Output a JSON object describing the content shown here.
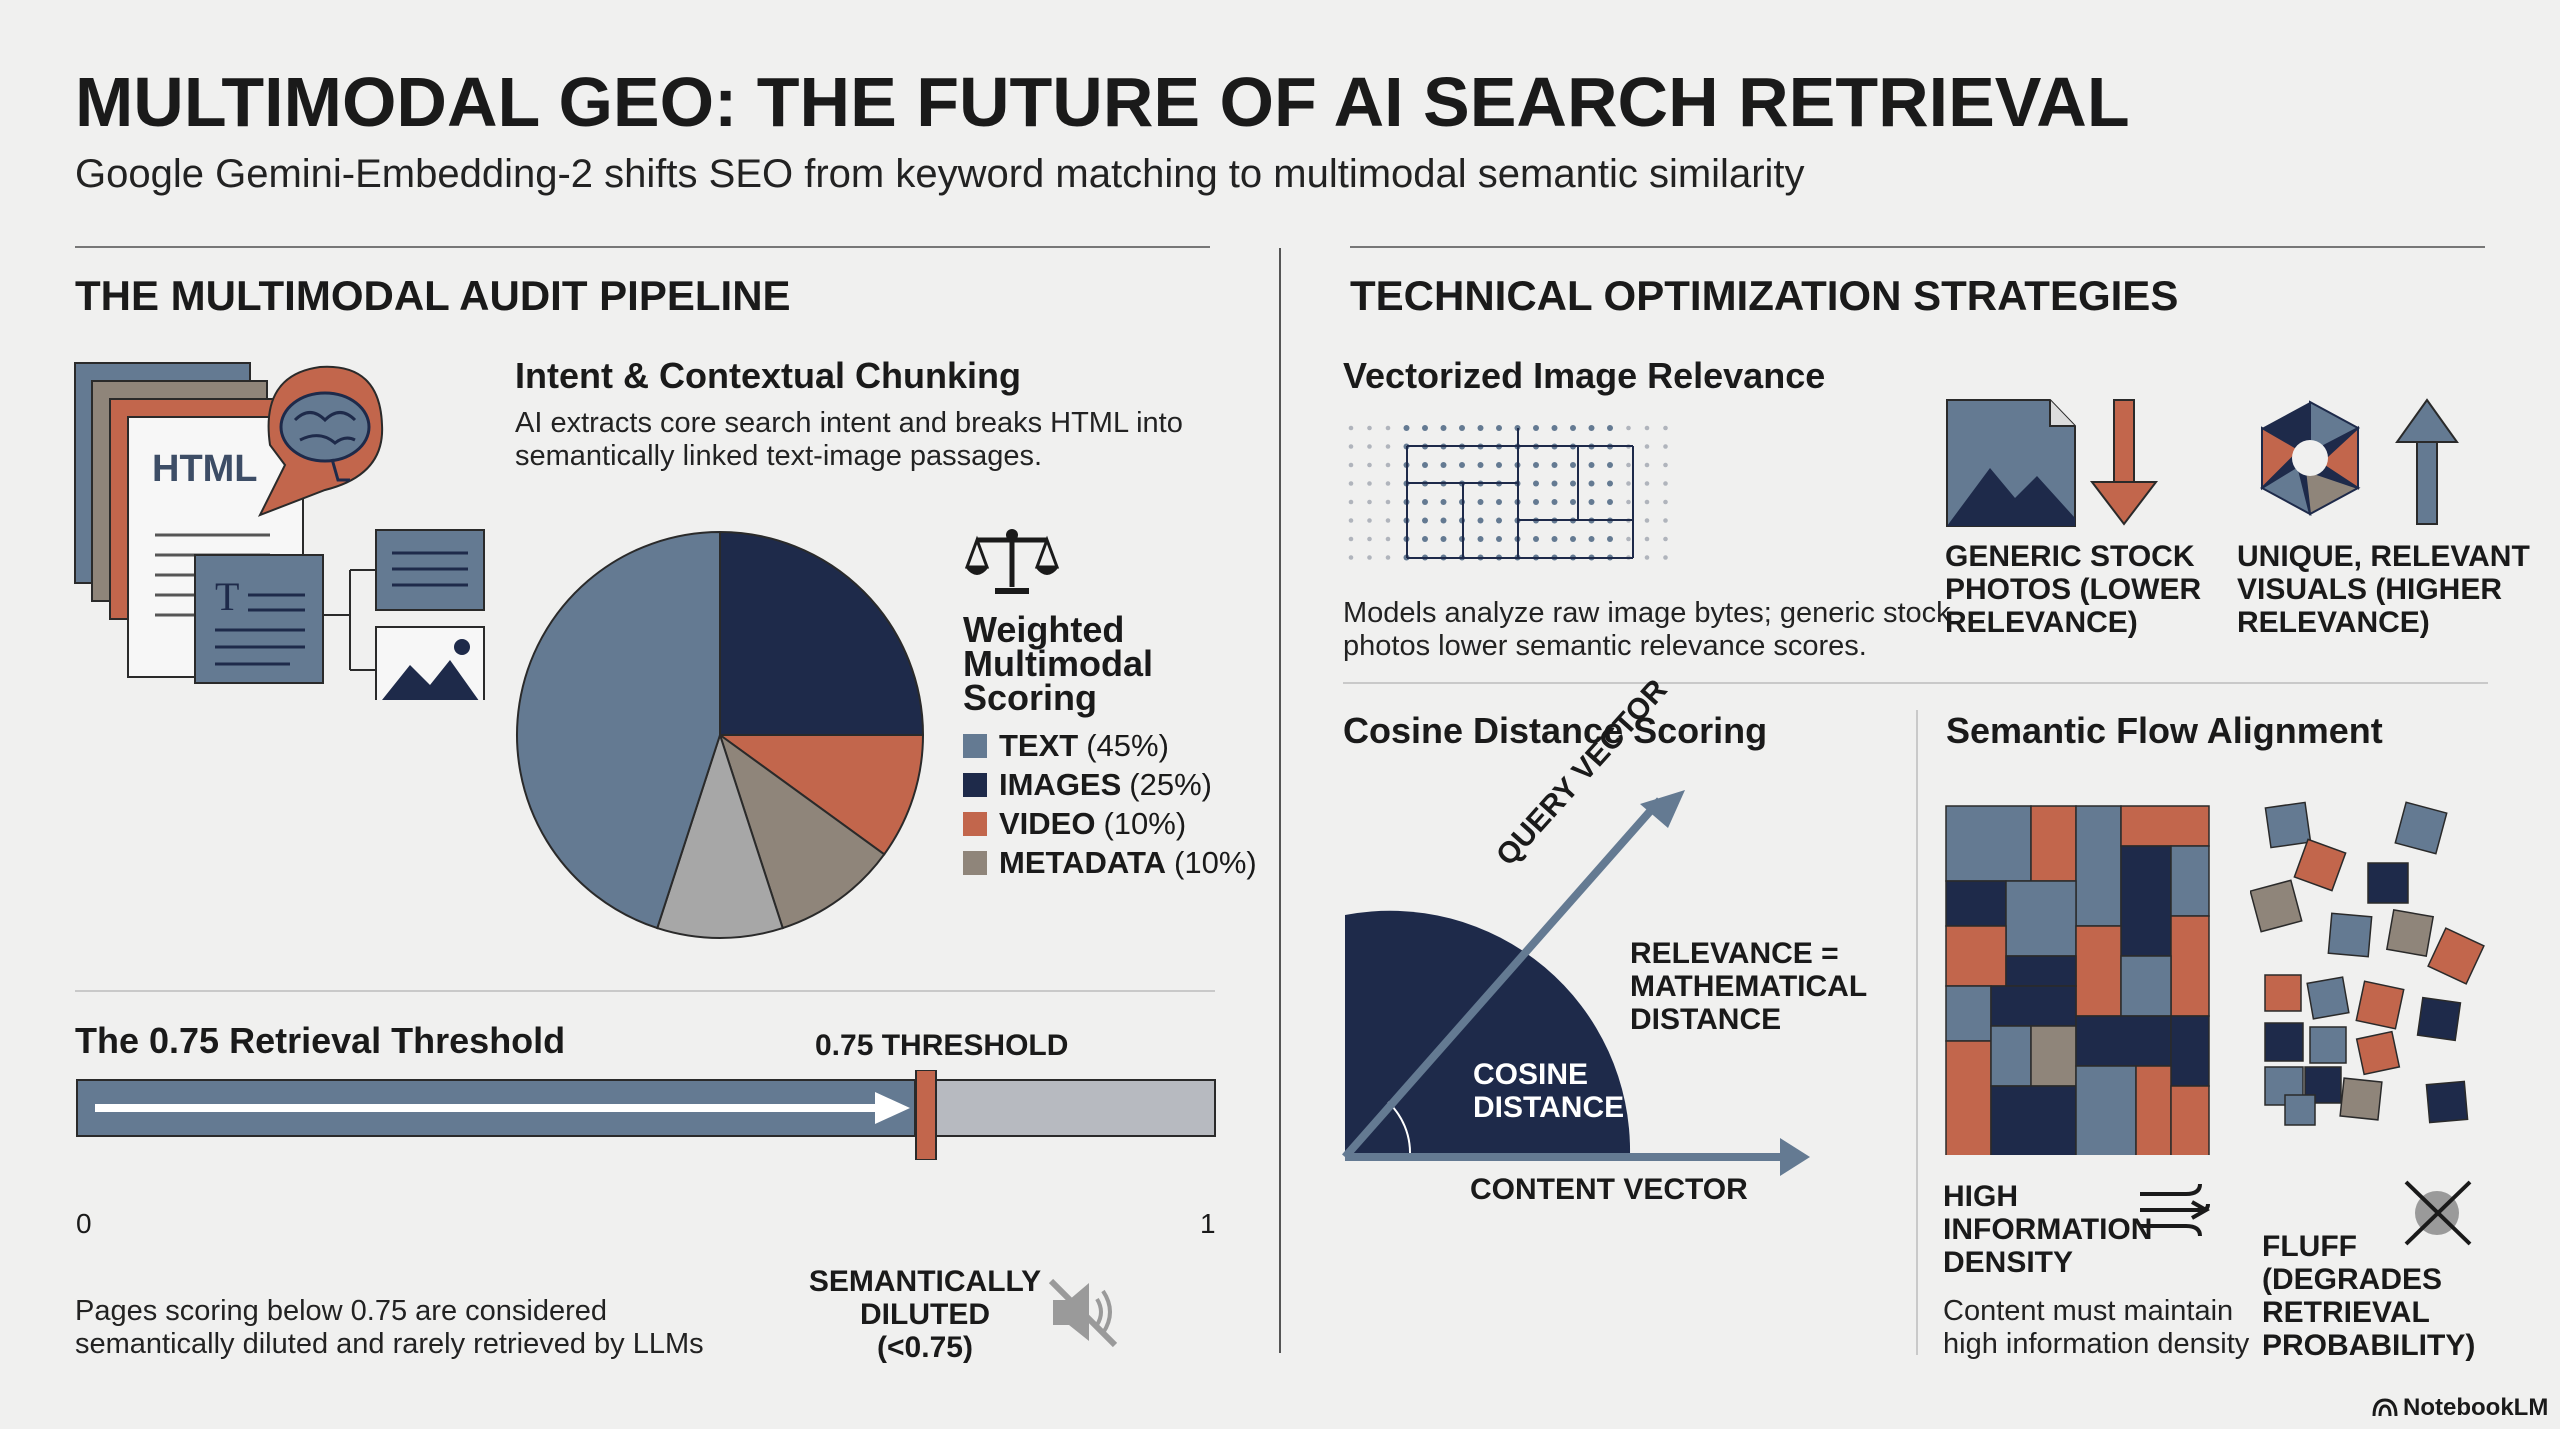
{
  "header": {
    "title": "MULTIMODAL GEO: THE FUTURE OF AI SEARCH RETRIEVAL",
    "subtitle": "Google Gemini-Embedding-2 shifts SEO from keyword matching to multimodal semantic similarity"
  },
  "colors": {
    "slate": "#647a92",
    "navy": "#1e2a4a",
    "rust": "#c2664c",
    "taupe": "#8f857a",
    "gray_bar": "#b7bac0",
    "background": "#f0f0ef"
  },
  "left": {
    "heading": "THE MULTIMODAL AUDIT PIPELINE",
    "chunking": {
      "title": "Intent & Contextual Chunking",
      "body_line1": "AI extracts core search intent and breaks HTML into",
      "body_line2": "semantically linked text-image passages.",
      "doc_label": "HTML",
      "text_glyph": "T",
      "icons": [
        "document-stack-icon",
        "brain-icon",
        "text-block-icon",
        "image-icon"
      ]
    },
    "scoring": {
      "title_line1": "Weighted",
      "title_line2": "Multimodal",
      "title_line3": "Scoring",
      "icon": "balance-scale-icon"
    },
    "threshold": {
      "title": "The 0.75 Retrieval Threshold",
      "marker_label": "0.75 THRESHOLD",
      "min_label": "0",
      "max_label": "1",
      "threshold_value": 0.75,
      "diluted_line1": "SEMANTICALLY",
      "diluted_line2": "DILUTED",
      "diluted_line3": "(<0.75)",
      "note_line1": "Pages scoring below 0.75 are considered",
      "note_line2": "semantically diluted and rarely retrieved by LLMs",
      "icon": "muted-speaker-icon"
    }
  },
  "chart_data": {
    "type": "pie",
    "title": "Weighted Multimodal Scoring",
    "slices": [
      {
        "name": "TEXT",
        "label": "(45%)",
        "value": 45,
        "color": "#647a92"
      },
      {
        "name": "IMAGES",
        "label": "(25%)",
        "value": 25,
        "color": "#1e2a4a"
      },
      {
        "name": "VIDEO",
        "label": "(10%)",
        "value": 10,
        "color": "#c2664c"
      },
      {
        "name": "METADATA",
        "label": "(10%)",
        "value": 10,
        "color": "#8f857a"
      }
    ],
    "drawn_slices": [
      {
        "name": "IMAGES",
        "value": 25,
        "color": "#1e2a4a"
      },
      {
        "name": "VIDEO",
        "value": 10,
        "color": "#c2664c"
      },
      {
        "name": "METADATA",
        "value": 10,
        "color": "#8f857a"
      },
      {
        "name": "",
        "value": 10,
        "color": "#a7a7a7"
      },
      {
        "name": "TEXT",
        "value": 45,
        "color": "#647a92"
      }
    ],
    "legend": "right"
  },
  "right": {
    "heading": "TECHNICAL OPTIMIZATION STRATEGIES",
    "image_relevance": {
      "title": "Vectorized Image Relevance",
      "body_line1": "Models analyze raw image bytes; generic stock",
      "body_line2": "photos lower semantic relevance scores.",
      "generic_line1": "GENERIC STOCK",
      "generic_line2": "PHOTOS (LOWER",
      "generic_line3": "RELEVANCE)",
      "unique_line1": "UNIQUE, RELEVANT",
      "unique_line2": "VISUALS (HIGHER",
      "unique_line3": "RELEVANCE)",
      "icons": [
        "vector-grid-icon",
        "stock-photo-icon",
        "arrow-down-icon",
        "unique-logo-icon",
        "arrow-up-icon"
      ]
    },
    "cosine": {
      "title": "Cosine Distance Scoring",
      "query_vector": "QUERY VECTOR",
      "content_vector": "CONTENT VECTOR",
      "cosine_line1": "COSINE",
      "cosine_line2": "DISTANCE",
      "relevance_line1": "RELEVANCE =",
      "relevance_line2": "MATHEMATICAL",
      "relevance_line3": "DISTANCE"
    },
    "flow": {
      "title": "Semantic Flow Alignment",
      "high_line1": "HIGH",
      "high_line2": "INFORMATION",
      "high_line3": "DENSITY",
      "high_note_line1": "Content must maintain",
      "high_note_line2": "high information density",
      "fluff_line1": "FLUFF",
      "fluff_line2": "(DEGRADES",
      "fluff_line3": "RETRIEVAL",
      "fluff_line4": "PROBABILITY)",
      "icons": [
        "wind-flow-icon",
        "cross-out-icon"
      ]
    }
  },
  "footer": {
    "brand": "NotebookLM"
  }
}
